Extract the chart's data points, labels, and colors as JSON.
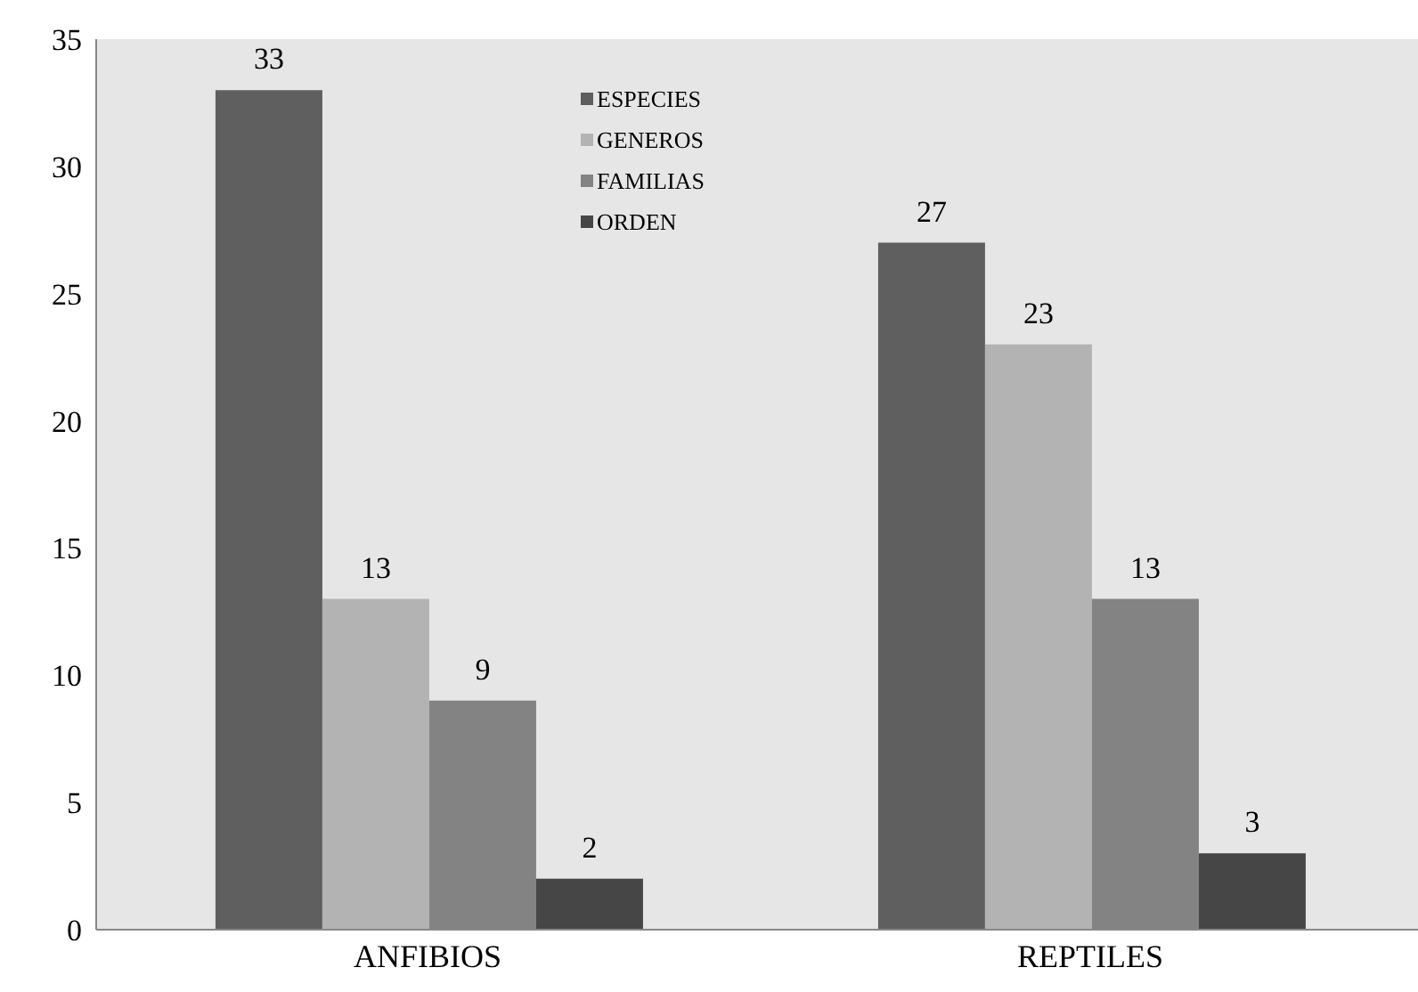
{
  "chart_data": {
    "type": "bar",
    "categories": [
      "ANFIBIOS",
      "REPTILES"
    ],
    "series": [
      {
        "name": "ESPECIES",
        "color": "#5f5f5f",
        "values": [
          33,
          27
        ]
      },
      {
        "name": "GENEROS",
        "color": "#b3b3b3",
        "values": [
          13,
          23
        ]
      },
      {
        "name": "FAMILIAS",
        "color": "#838383",
        "values": [
          9,
          13
        ]
      },
      {
        "name": "ORDEN",
        "color": "#464646",
        "values": [
          2,
          3
        ]
      }
    ],
    "ylim": [
      0,
      35
    ],
    "yticks": [
      0,
      5,
      10,
      15,
      20,
      25,
      30,
      35
    ],
    "legend": "top",
    "data_labels": true
  }
}
